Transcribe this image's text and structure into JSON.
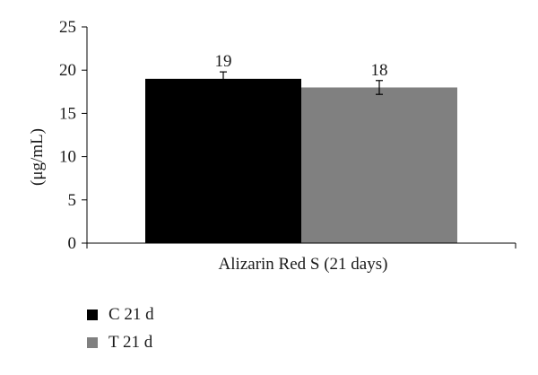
{
  "chart_data": {
    "type": "bar",
    "categories": [
      "Alizarin Red S (21 days)"
    ],
    "series": [
      {
        "name": "C 21 d",
        "values": [
          19
        ],
        "error": [
          0.8
        ],
        "color": "#000000"
      },
      {
        "name": "T 21 d",
        "values": [
          18
        ],
        "error": [
          0.8
        ],
        "color": "#808080"
      }
    ],
    "data_labels": [
      "19",
      "18"
    ],
    "ylabel": "(μg/mL)",
    "ylim": [
      0,
      25
    ],
    "yticks": [
      0,
      5,
      10,
      15,
      20,
      25
    ],
    "legend": "bottom-left",
    "grid": false
  }
}
